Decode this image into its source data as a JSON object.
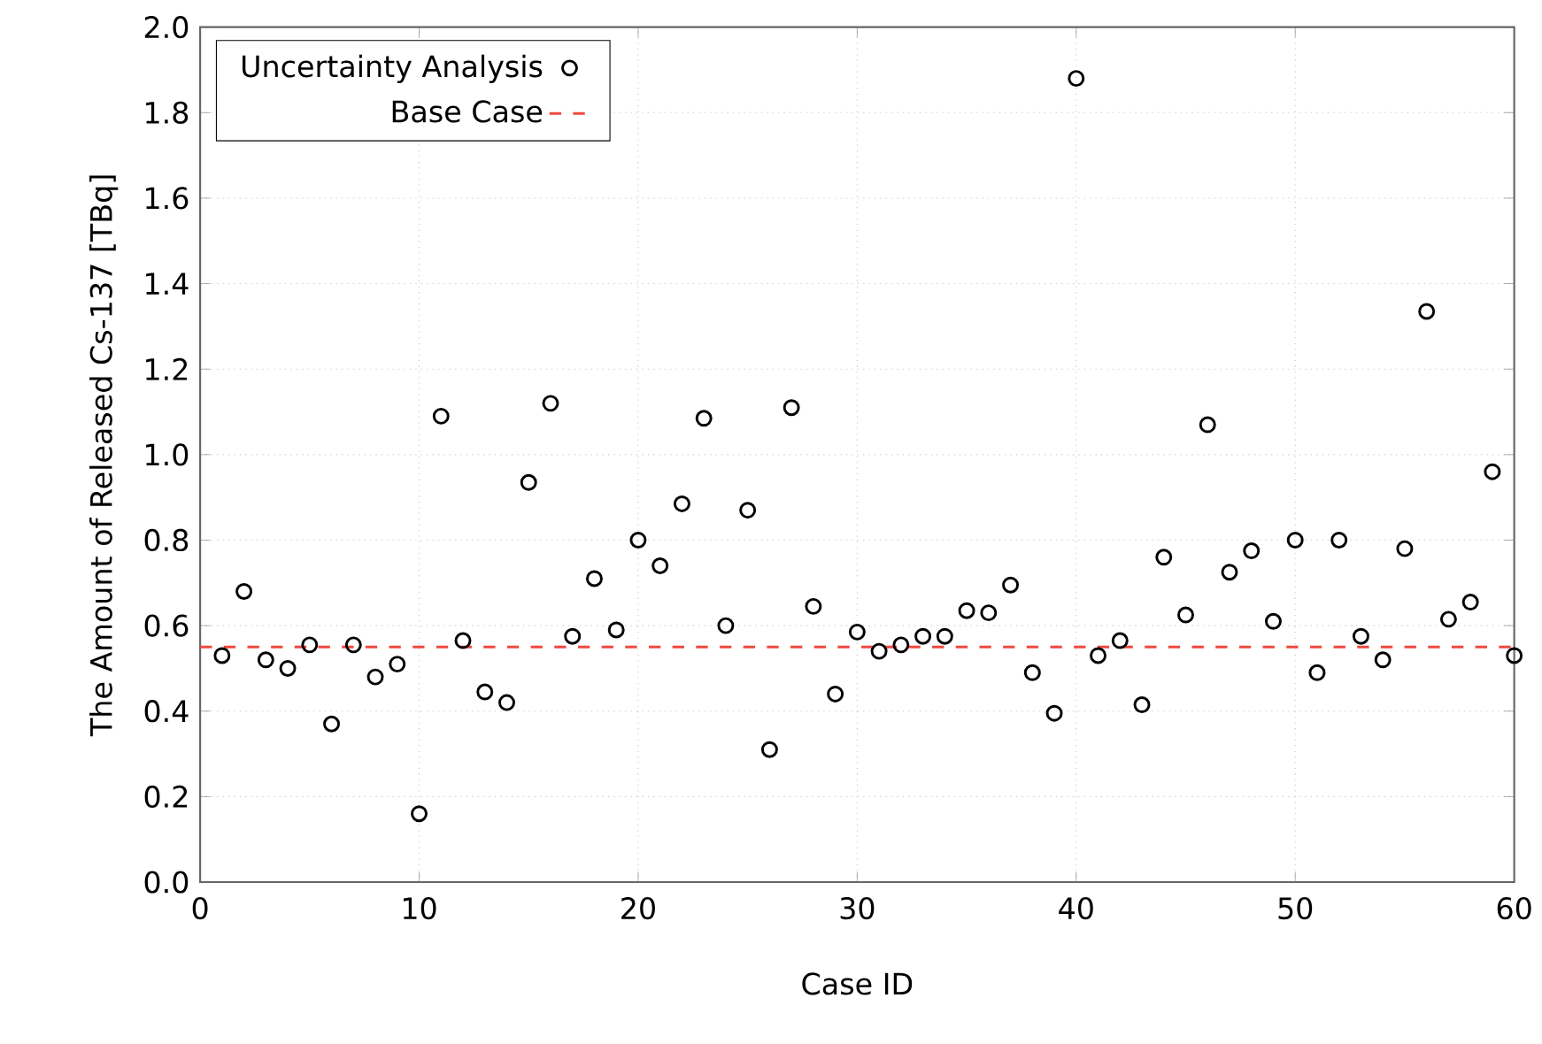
{
  "chart_data": {
    "type": "scatter",
    "xlabel": "Case ID",
    "ylabel": "The Amount of Released Cs-137 [TBq]",
    "xlim": [
      0,
      60
    ],
    "xticks": [
      0,
      10,
      20,
      30,
      40,
      50,
      60
    ],
    "ylim": [
      0,
      2
    ],
    "yticks": [
      {
        "value": 0,
        "label": "0.0"
      },
      0.2,
      0.4,
      0.6,
      0.8,
      {
        "value": 1,
        "label": "1.0"
      },
      1.2,
      1.4,
      1.6,
      1.8,
      {
        "value": 2,
        "label": "2.0"
      }
    ],
    "grid": true,
    "legend": "top left",
    "series": [
      {
        "name": "Uncertainty Analysis",
        "marker": "circle",
        "color": "#000000",
        "x": [
          1,
          2,
          3,
          4,
          5,
          6,
          7,
          8,
          9,
          10,
          11,
          12,
          13,
          14,
          15,
          16,
          17,
          18,
          19,
          20,
          21,
          22,
          23,
          24,
          25,
          26,
          27,
          28,
          29,
          30,
          31,
          32,
          33,
          34,
          35,
          36,
          37,
          38,
          39,
          40,
          41,
          42,
          43,
          44,
          45,
          46,
          47,
          48,
          49,
          50,
          51,
          52,
          53,
          54,
          55,
          56,
          57,
          58,
          59,
          60
        ],
        "values": [
          0.53,
          0.68,
          0.52,
          0.5,
          0.555,
          0.37,
          0.555,
          0.48,
          0.51,
          0.16,
          1.09,
          0.565,
          0.445,
          0.42,
          0.935,
          1.12,
          0.575,
          0.71,
          0.59,
          0.8,
          0.74,
          0.885,
          1.085,
          0.6,
          0.87,
          0.31,
          1.11,
          0.645,
          0.44,
          0.585,
          0.54,
          0.555,
          0.575,
          0.575,
          0.635,
          0.63,
          0.695,
          0.49,
          0.395,
          1.88,
          0.53,
          0.565,
          0.415,
          0.76,
          0.625,
          1.07,
          0.725,
          0.775,
          0.61,
          0.8,
          0.49,
          0.8,
          0.575,
          0.52,
          0.78,
          1.335,
          0.615,
          0.655,
          0.96,
          0.53
        ]
      },
      {
        "name": "Base Case",
        "type": "line",
        "line_style": "dashed",
        "color": "#f0493f",
        "x": [
          0,
          60
        ],
        "values": [
          0.55,
          0.55
        ]
      }
    ]
  }
}
